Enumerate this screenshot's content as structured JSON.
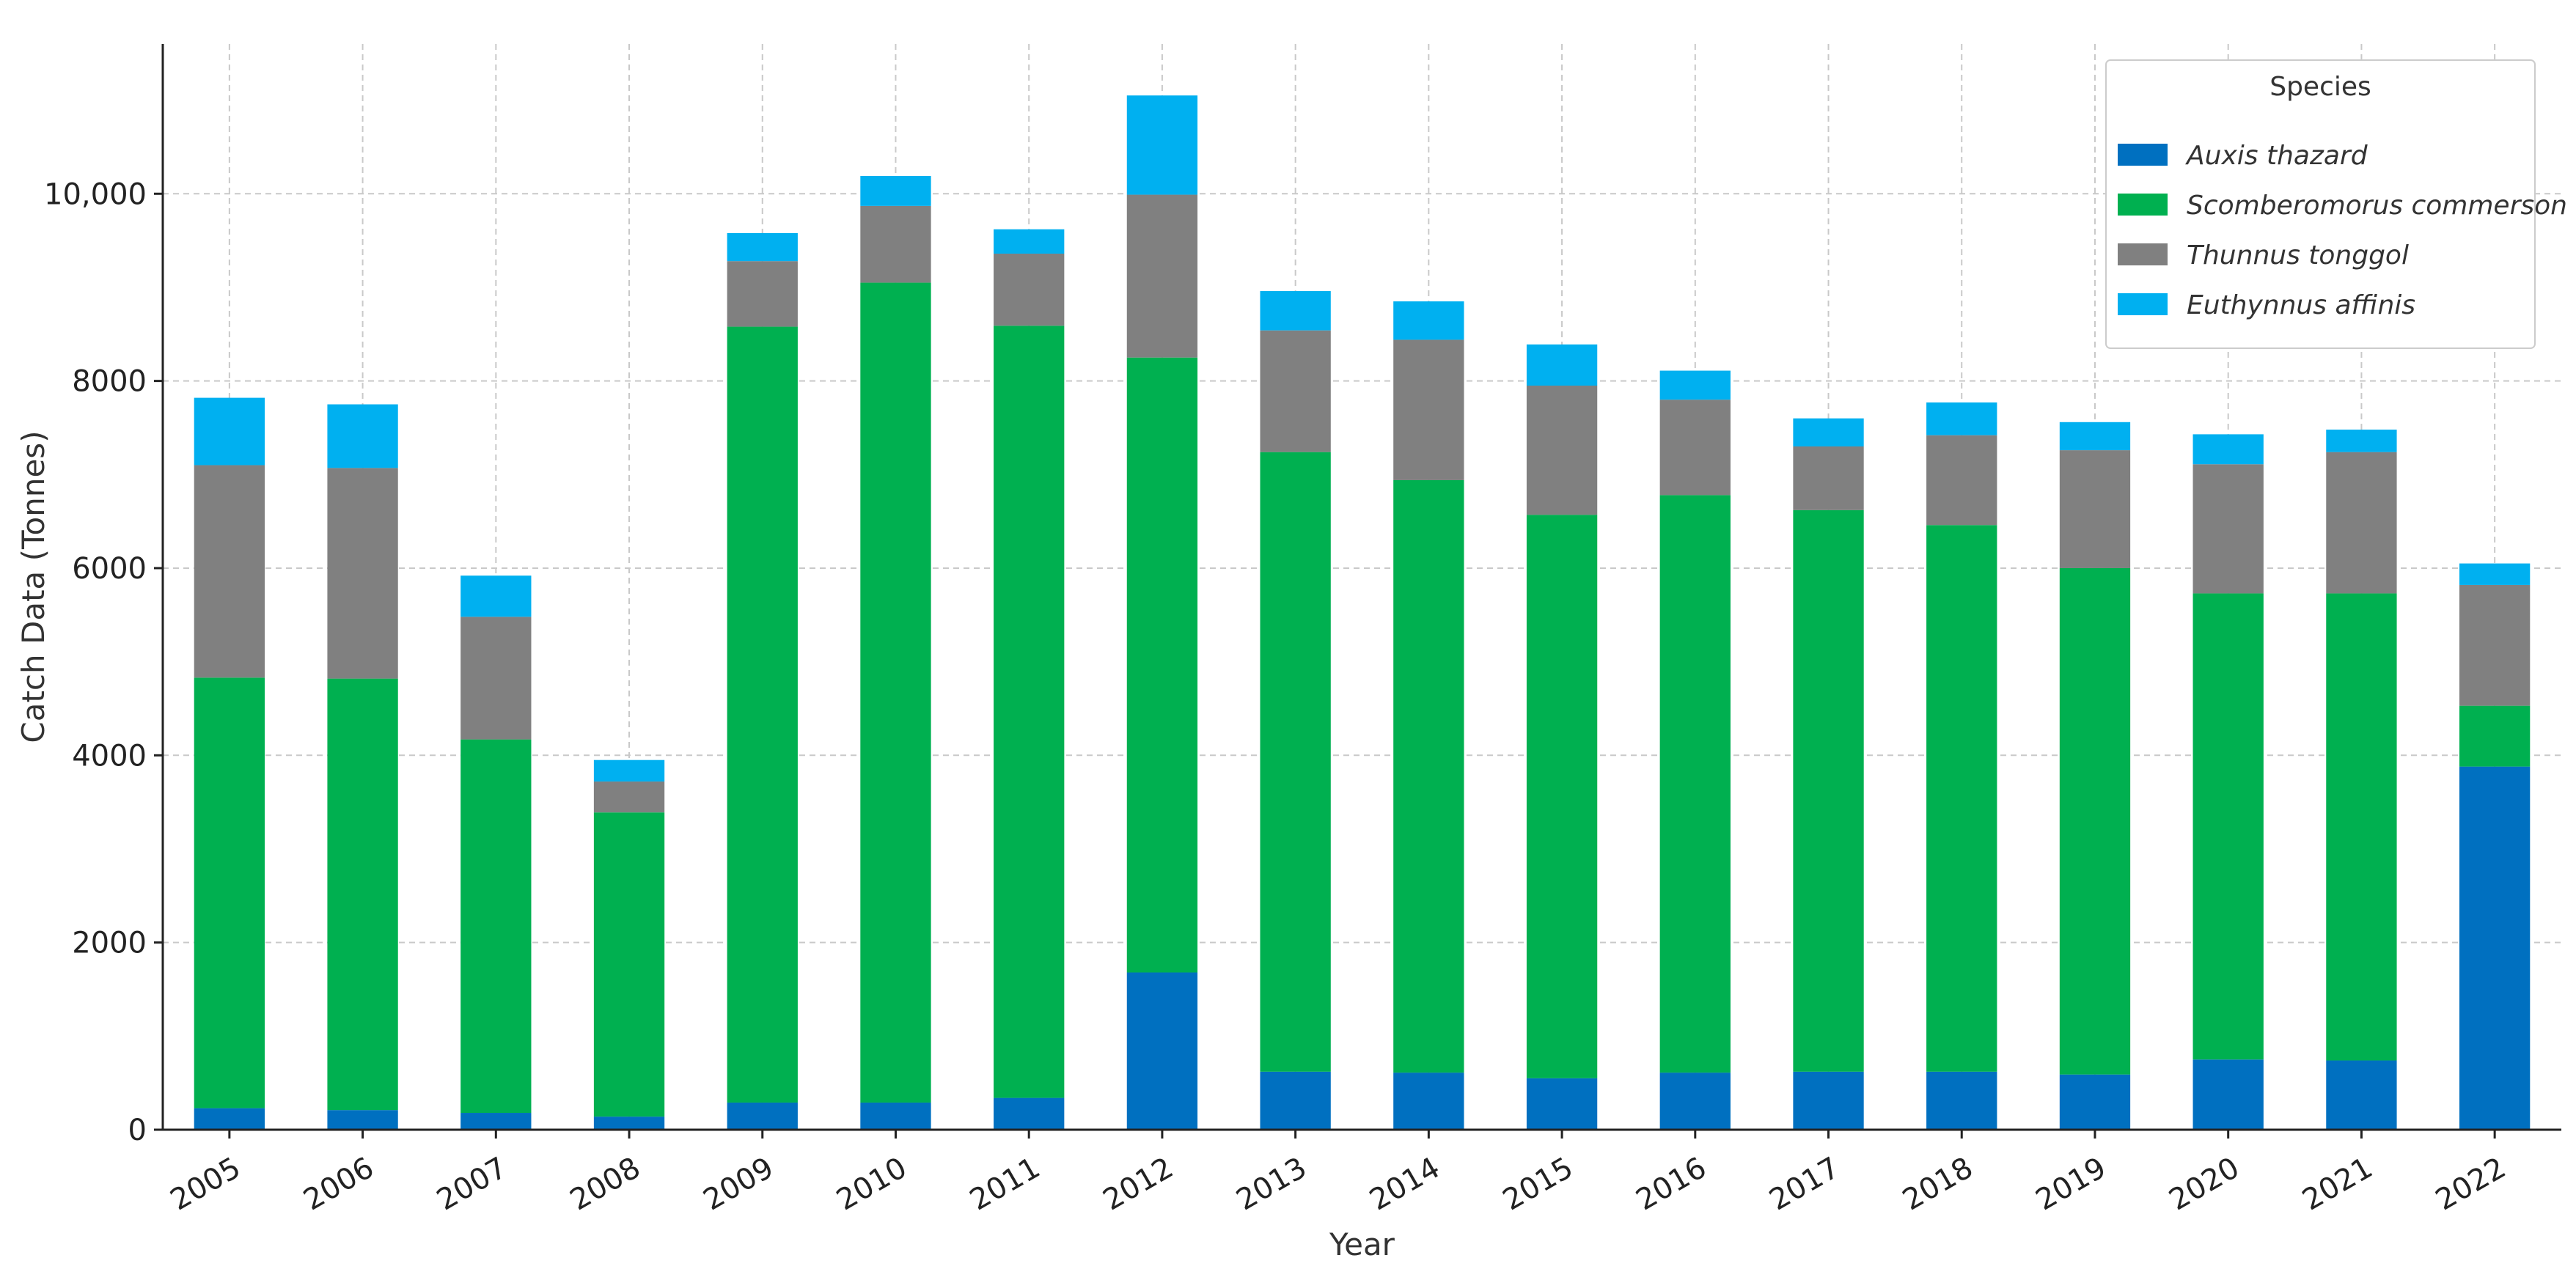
{
  "chart_data": {
    "type": "bar",
    "stacked": true,
    "xlabel": "Year",
    "ylabel": "Catch Data (Tonnes)",
    "ylim": [
      0,
      11600
    ],
    "yticks": [
      0,
      2000,
      4000,
      6000,
      8000,
      10000
    ],
    "ytick_labels": [
      "0",
      "2000",
      "4000",
      "6000",
      "8000",
      "10,000"
    ],
    "grid": true,
    "legend": {
      "title": "Species",
      "position": "top-right"
    },
    "categories": [
      "2005",
      "2006",
      "2007",
      "2008",
      "2009",
      "2010",
      "2011",
      "2012",
      "2013",
      "2014",
      "2015",
      "2016",
      "2017",
      "2018",
      "2019",
      "2020",
      "2021",
      "2022"
    ],
    "series": [
      {
        "name": "Auxis thazard",
        "color": "#0070c0",
        "values": [
          230,
          210,
          180,
          140,
          290,
          290,
          340,
          1680,
          620,
          610,
          550,
          610,
          620,
          620,
          590,
          750,
          740,
          3880
        ]
      },
      {
        "name": "Scomberomorus commerson",
        "color": "#00b050",
        "values": [
          4600,
          4610,
          3990,
          3250,
          8290,
          8760,
          8250,
          6570,
          6620,
          6330,
          6020,
          6170,
          6000,
          5840,
          5410,
          4980,
          4990,
          650
        ]
      },
      {
        "name": "Thunnus tonggol",
        "color": "#808080",
        "values": [
          2270,
          2250,
          1310,
          330,
          700,
          820,
          770,
          1740,
          1300,
          1500,
          1380,
          1020,
          680,
          960,
          1260,
          1380,
          1510,
          1290
        ]
      },
      {
        "name": "Euthynnus affinis",
        "color": "#00b0f0",
        "values": [
          720,
          680,
          440,
          230,
          300,
          320,
          260,
          1060,
          420,
          410,
          440,
          310,
          300,
          350,
          300,
          320,
          240,
          230
        ]
      }
    ]
  }
}
